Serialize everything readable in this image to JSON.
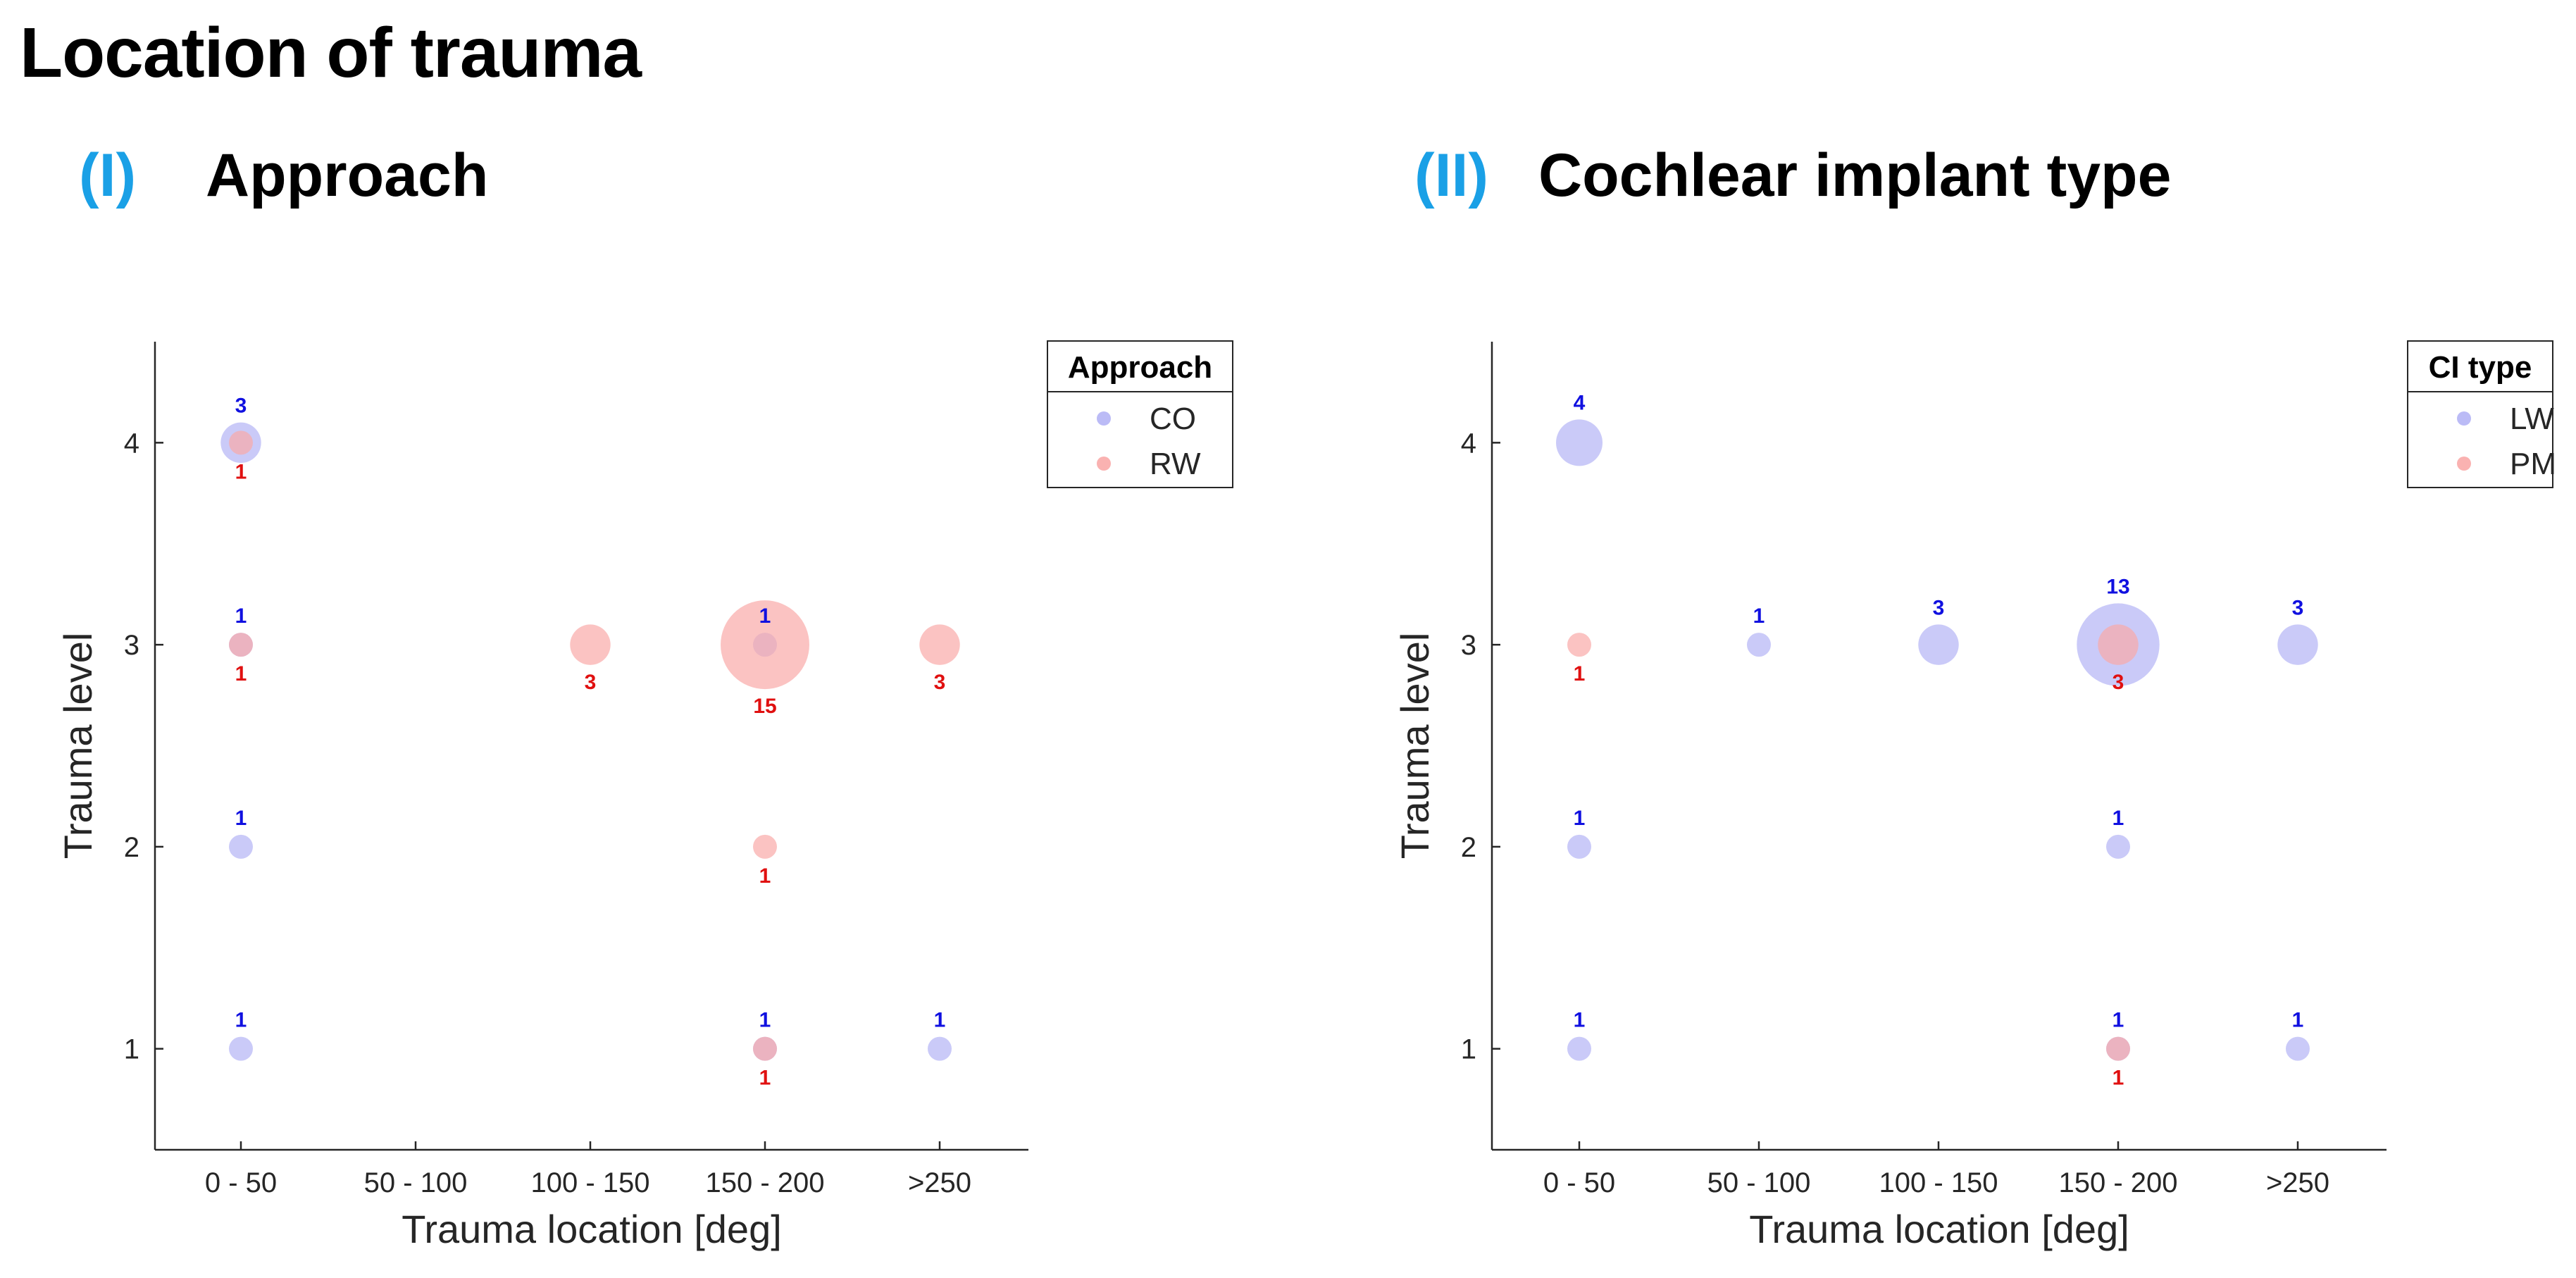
{
  "page_title": "Location of trauma",
  "chart_data": [
    {
      "type": "scatter",
      "panel_label": "(I)",
      "title": "Approach",
      "xlabel": "Trauma location [deg]",
      "ylabel": "Trauma level",
      "categories": [
        "0 - 50",
        "50 - 100",
        "100 - 150",
        "150 - 200",
        ">250"
      ],
      "yticks": [
        1,
        2,
        3,
        4
      ],
      "ylim": [
        0.5,
        4.5
      ],
      "legend_title": "Approach",
      "legend_position": "top-right",
      "grid": false,
      "series": [
        {
          "name": "CO",
          "color": "#b4b4f5",
          "label_color": "#1010e0",
          "points": [
            {
              "x": "0 - 50",
              "y": 4,
              "count": 3
            },
            {
              "x": "0 - 50",
              "y": 3,
              "count": 1
            },
            {
              "x": "0 - 50",
              "y": 2,
              "count": 1
            },
            {
              "x": "0 - 50",
              "y": 1,
              "count": 1
            },
            {
              "x": "150 - 200",
              "y": 3,
              "count": 1
            },
            {
              "x": "150 - 200",
              "y": 1,
              "count": 1
            },
            {
              "x": ">250",
              "y": 1,
              "count": 1
            }
          ]
        },
        {
          "name": "RW",
          "color": "#f9aaa8",
          "label_color": "#e01010",
          "points": [
            {
              "x": "0 - 50",
              "y": 4,
              "count": 1
            },
            {
              "x": "0 - 50",
              "y": 3,
              "count": 1
            },
            {
              "x": "100 - 150",
              "y": 3,
              "count": 3
            },
            {
              "x": "150 - 200",
              "y": 3,
              "count": 15
            },
            {
              "x": "150 - 200",
              "y": 2,
              "count": 1
            },
            {
              "x": "150 - 200",
              "y": 1,
              "count": 1
            },
            {
              "x": ">250",
              "y": 3,
              "count": 3
            }
          ]
        }
      ]
    },
    {
      "type": "scatter",
      "panel_label": "(II)",
      "title": "Cochlear implant type",
      "xlabel": "Trauma location [deg]",
      "ylabel": "Trauma level",
      "categories": [
        "0 - 50",
        "50 - 100",
        "100 - 150",
        "150 - 200",
        ">250"
      ],
      "yticks": [
        1,
        2,
        3,
        4
      ],
      "ylim": [
        0.5,
        4.5
      ],
      "legend_title": "CI type",
      "legend_position": "top-right",
      "grid": false,
      "series": [
        {
          "name": "LW",
          "color": "#b4b4f5",
          "label_color": "#1010e0",
          "points": [
            {
              "x": "0 - 50",
              "y": 4,
              "count": 4
            },
            {
              "x": "0 - 50",
              "y": 2,
              "count": 1
            },
            {
              "x": "0 - 50",
              "y": 1,
              "count": 1
            },
            {
              "x": "50 - 100",
              "y": 3,
              "count": 1
            },
            {
              "x": "100 - 150",
              "y": 3,
              "count": 3
            },
            {
              "x": "150 - 200",
              "y": 3,
              "count": 13
            },
            {
              "x": "150 - 200",
              "y": 2,
              "count": 1
            },
            {
              "x": "150 - 200",
              "y": 1,
              "count": 1
            },
            {
              "x": ">250",
              "y": 3,
              "count": 3
            },
            {
              "x": ">250",
              "y": 1,
              "count": 1
            }
          ]
        },
        {
          "name": "PM",
          "color": "#f9aaa8",
          "label_color": "#e01010",
          "points": [
            {
              "x": "0 - 50",
              "y": 3,
              "count": 1
            },
            {
              "x": "150 - 200",
              "y": 3,
              "count": 3
            },
            {
              "x": "150 - 200",
              "y": 1,
              "count": 1
            }
          ]
        }
      ]
    }
  ]
}
